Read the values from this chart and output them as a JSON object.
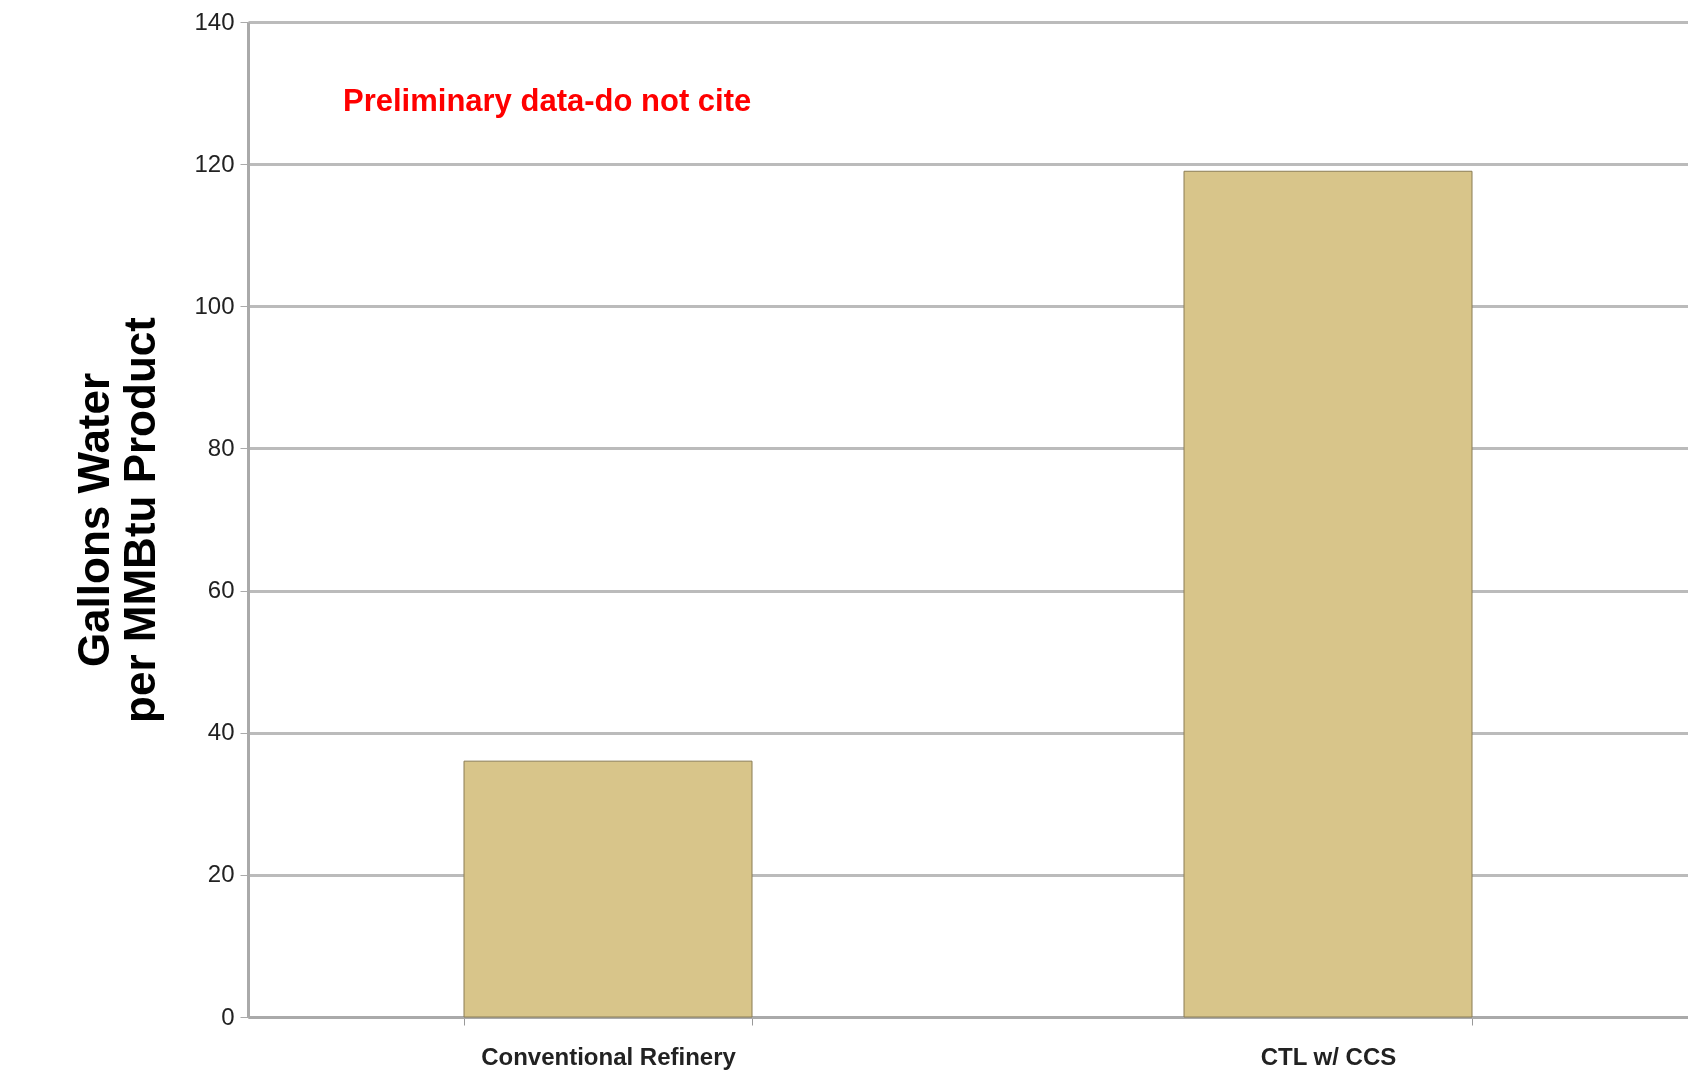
{
  "chart_data": {
    "type": "bar",
    "ylabel": "Gallons Water per MMBtu Product",
    "categories": [
      "Conventional Refinery",
      "CTL w/ CCS"
    ],
    "values": [
      36,
      119
    ],
    "color": "#d8c58a",
    "ylim": [
      0,
      140
    ],
    "yticks": [
      0,
      20,
      40,
      60,
      80,
      100,
      120,
      140
    ],
    "grid": "y",
    "annotations": [
      "Preliminary data-do not cite"
    ]
  }
}
